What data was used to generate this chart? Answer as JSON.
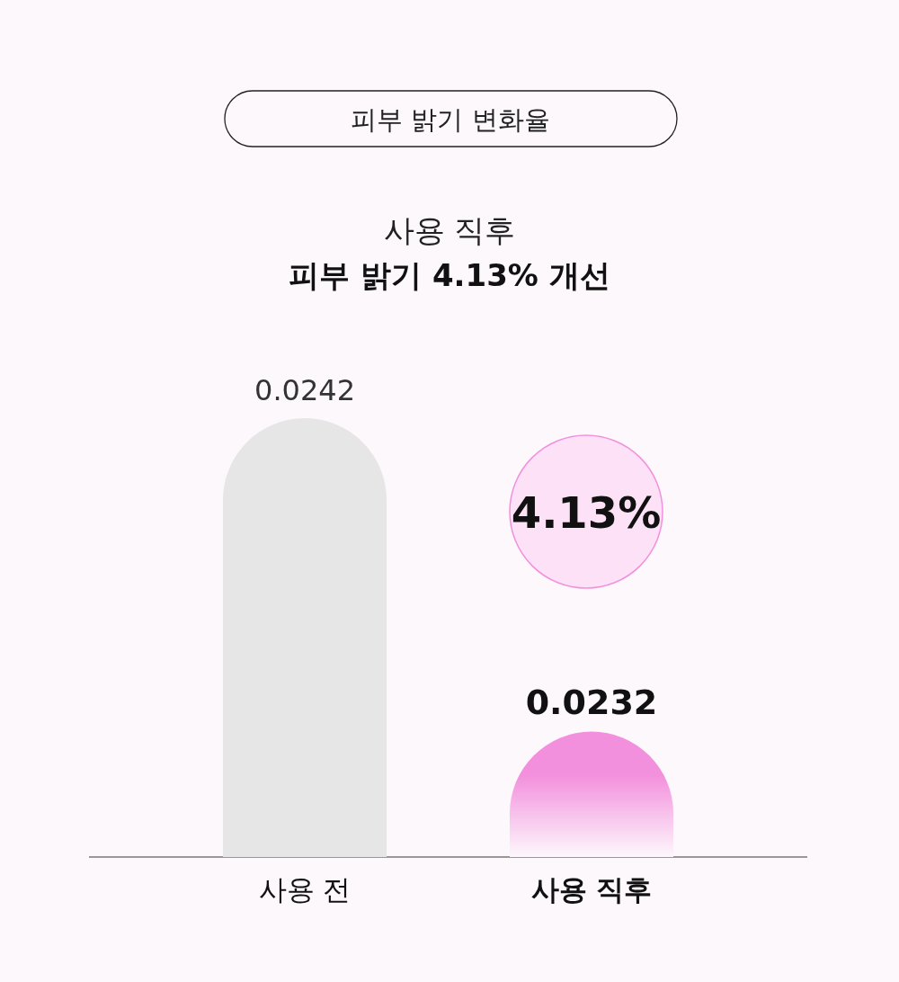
{
  "chart_data": {
    "type": "bar",
    "title": "피부 밝기 변화율",
    "subtitle": "사용 직후 **피부 밝기 4.13% 개선**",
    "categories": [
      "사용 전",
      "사용 직후"
    ],
    "values": [
      0.0242,
      0.0232
    ],
    "colors": [
      "#e6e6e6",
      "#f390dd"
    ],
    "ylim": [
      0.0228,
      0.0242
    ],
    "data_labels": true,
    "annotations": [
      "4.13%"
    ]
  }
}
